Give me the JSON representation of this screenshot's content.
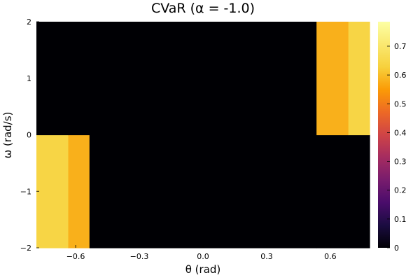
{
  "chart_data": {
    "type": "heatmap",
    "title": "CVaR (α = -1.0)",
    "xlabel": "θ (rad)",
    "ylabel": "ω (rad/s)",
    "xlim": [
      -0.785,
      0.785
    ],
    "ylim": [
      -2,
      2
    ],
    "x_ticks": [
      {
        "value": -0.6,
        "label": "−0.6"
      },
      {
        "value": -0.3,
        "label": "−0.3"
      },
      {
        "value": 0.0,
        "label": "0.0"
      },
      {
        "value": 0.3,
        "label": "0.3"
      },
      {
        "value": 0.6,
        "label": "0.6"
      }
    ],
    "y_ticks": [
      {
        "value": -2,
        "label": "−2"
      },
      {
        "value": -1,
        "label": "−1"
      },
      {
        "value": 0,
        "label": "0"
      },
      {
        "value": 1,
        "label": "1"
      },
      {
        "value": 2,
        "label": "2"
      }
    ],
    "x_edges": [
      -0.785,
      -0.635,
      -0.535,
      0.535,
      0.685,
      0.785
    ],
    "y_edges": [
      -2,
      0,
      2
    ],
    "z": [
      [
        0.64,
        0.58,
        0.0,
        0.0,
        0.0
      ],
      [
        0.0,
        0.0,
        0.0,
        0.58,
        0.64
      ]
    ],
    "colormap": "inferno",
    "colorbar": {
      "range": [
        0,
        0.785
      ],
      "ticks": [
        {
          "value": 0,
          "label": "0"
        },
        {
          "value": 0.1,
          "label": "0.1"
        },
        {
          "value": 0.2,
          "label": "0.2"
        },
        {
          "value": 0.3,
          "label": "0.3"
        },
        {
          "value": 0.4,
          "label": "0.4"
        },
        {
          "value": 0.5,
          "label": "0.5"
        },
        {
          "value": 0.6,
          "label": "0.6"
        },
        {
          "value": 0.7,
          "label": "0.7"
        }
      ]
    },
    "grid": false,
    "legend": "none"
  }
}
